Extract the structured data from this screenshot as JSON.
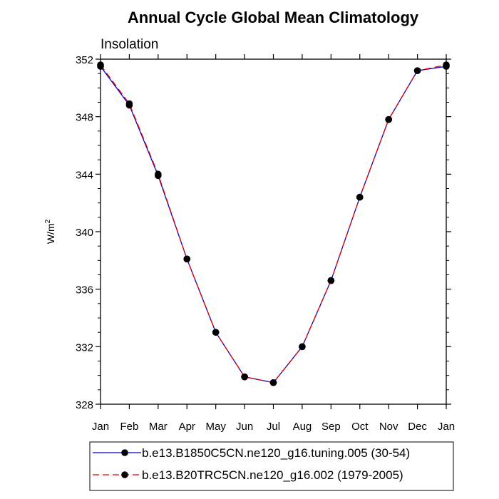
{
  "chart_data": {
    "type": "line",
    "title": "Annual Cycle Global Mean Climatology",
    "subtitle": "Insolation",
    "ylabel_base": "W/m",
    "ylabel_sup": "2",
    "xlabel": "",
    "categories": [
      "Jan",
      "Feb",
      "Mar",
      "Apr",
      "May",
      "Jun",
      "Jul",
      "Aug",
      "Sep",
      "Oct",
      "Nov",
      "Dec",
      "Jan"
    ],
    "ylim": [
      328,
      352
    ],
    "yticks": [
      328,
      332,
      336,
      340,
      344,
      348,
      352
    ],
    "series": [
      {
        "name": "b.e13.B1850C5CN.ne120_g16.tuning.005 (30-54)",
        "color": "#0000cc",
        "dash": "solid",
        "values": [
          351.5,
          348.8,
          343.9,
          338.1,
          333.0,
          329.9,
          329.5,
          332.0,
          336.6,
          342.4,
          347.8,
          351.2,
          351.5
        ]
      },
      {
        "name": "b.e13.B20TRC5CN.ne120_g16.002 (1979-2005)",
        "color": "#ee0000",
        "dash": "dashed",
        "values": [
          351.6,
          348.9,
          344.0,
          338.1,
          333.0,
          329.9,
          329.5,
          332.0,
          336.6,
          342.4,
          347.8,
          351.2,
          351.6
        ]
      }
    ]
  }
}
